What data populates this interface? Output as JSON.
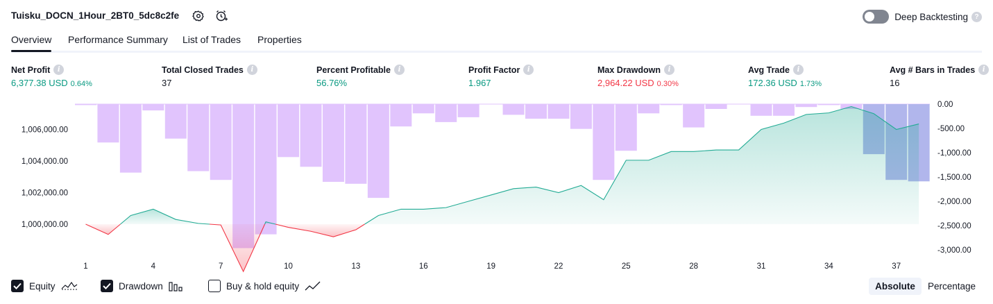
{
  "header": {
    "title": "Tuisku_DOCN_1Hour_2BT0_5dc8c2fe",
    "deep_backtesting_label": "Deep Backtesting",
    "deep_backtesting_enabled": false
  },
  "tabs": [
    {
      "label": "Overview",
      "active": true
    },
    {
      "label": "Performance Summary",
      "active": false
    },
    {
      "label": "List of Trades",
      "active": false
    },
    {
      "label": "Properties",
      "active": false
    }
  ],
  "metrics": [
    {
      "label": "Net Profit",
      "value": "6,377.38 USD",
      "pct": "0.64%",
      "color": "#089981"
    },
    {
      "label": "Total Closed Trades",
      "value": "37",
      "pct": "",
      "color": "#131722"
    },
    {
      "label": "Percent Profitable",
      "value": "56.76%",
      "pct": "",
      "color": "#089981"
    },
    {
      "label": "Profit Factor",
      "value": "1.967",
      "pct": "",
      "color": "#089981"
    },
    {
      "label": "Max Drawdown",
      "value": "2,964.22 USD",
      "pct": "0.30%",
      "color": "#f23645"
    },
    {
      "label": "Avg Trade",
      "value": "172.36 USD",
      "pct": "1.73%",
      "color": "#089981"
    },
    {
      "label": "Avg # Bars in Trades",
      "value": "16",
      "pct": "",
      "color": "#131722"
    }
  ],
  "legend": {
    "equity_label": "Equity",
    "equity_checked": true,
    "drawdown_label": "Drawdown",
    "drawdown_checked": true,
    "buyhold_label": "Buy & hold equity",
    "buyhold_checked": false,
    "absolute_label": "Absolute",
    "percentage_label": "Percentage",
    "active_mode": "Absolute"
  },
  "colors": {
    "profit": "#089981",
    "loss": "#f23645",
    "drawdown_bar": "#e1c4fd",
    "drawdown_bar_recent": "#b1b6ec",
    "equity_line": "#22ab94"
  },
  "chart_data": {
    "type": "line",
    "xlabel": "",
    "ylabel": "",
    "x_ticks": [
      "1",
      "4",
      "7",
      "10",
      "13",
      "16",
      "19",
      "22",
      "25",
      "28",
      "31",
      "34",
      "37"
    ],
    "y_left_ticks": [
      "1,000,000.00",
      "1,002,000.00",
      "1,004,000.00",
      "1,006,000.00"
    ],
    "y_right_ticks": [
      "0.00",
      "-500.00",
      "-1,000.00",
      "-1,500.00",
      "-2,000.00",
      "-2,500.00",
      "-3,000.00"
    ],
    "ylim_left": [
      997500,
      1007300
    ],
    "ylim_right": [
      -3100,
      0
    ],
    "baseline": 1000000,
    "series": [
      {
        "name": "Equity",
        "axis": "left",
        "x": [
          1,
          2,
          3,
          4,
          5,
          6,
          7,
          8,
          9,
          10,
          11,
          12,
          13,
          14,
          15,
          16,
          17,
          18,
          19,
          20,
          21,
          22,
          23,
          24,
          25,
          26,
          27,
          28,
          29,
          30,
          31,
          32,
          33,
          34,
          35,
          36,
          37,
          38
        ],
        "values": [
          1000000,
          999350,
          1000550,
          1000950,
          1000300,
          1000050,
          999950,
          997000,
          1000150,
          999800,
          999550,
          999200,
          999650,
          1000550,
          1000950,
          1000950,
          1001050,
          1001450,
          1001850,
          1002250,
          1002350,
          1002000,
          1002450,
          1001550,
          1004050,
          1004050,
          1004600,
          1004600,
          1004700,
          1004700,
          1006000,
          1006400,
          1006950,
          1007050,
          1007450,
          1007000,
          1006000,
          1006350
        ]
      },
      {
        "name": "Drawdown",
        "type": "bar",
        "axis": "right",
        "x": [
          1,
          2,
          3,
          4,
          5,
          6,
          7,
          8,
          9,
          10,
          11,
          12,
          13,
          14,
          15,
          16,
          17,
          18,
          19,
          20,
          21,
          22,
          23,
          24,
          25,
          26,
          27,
          28,
          29,
          30,
          31,
          32,
          33,
          34,
          35,
          36,
          37,
          38
        ],
        "values": [
          -20,
          -790,
          -1410,
          -130,
          -710,
          -1380,
          -1560,
          -2964,
          -2680,
          -1090,
          -1290,
          -1600,
          -1640,
          -1930,
          -460,
          -190,
          -370,
          -270,
          0,
          -220,
          -300,
          -300,
          -510,
          -1560,
          -960,
          -190,
          -20,
          -480,
          -100,
          0,
          -240,
          -240,
          -60,
          -20,
          -100,
          -1030,
          -1560,
          -1590
        ]
      }
    ]
  }
}
